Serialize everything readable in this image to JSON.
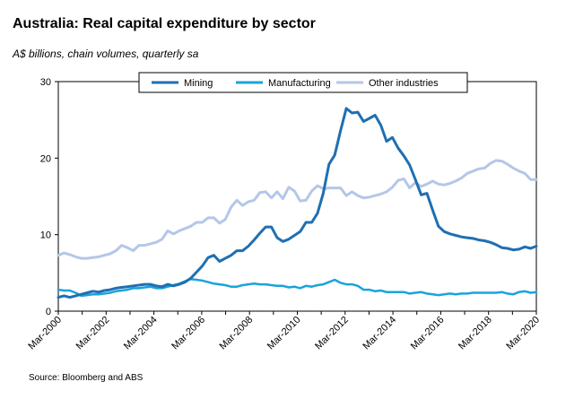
{
  "title": "Australia: Real capital expenditure by sector",
  "subtitle": "A$ billions, chain volumes, quarterly sa",
  "source": "Source: Bloomberg and ABS",
  "chart_data": {
    "type": "line",
    "title": "Australia: Real capital expenditure by sector",
    "ylabel": "A$ billions, chain volumes, quarterly sa",
    "xlabel": "",
    "ylim": [
      0,
      30
    ],
    "yticks": [
      0,
      10,
      20,
      30
    ],
    "xlim": [
      "Mar-2000",
      "Mar-2020"
    ],
    "xtick_labels": [
      "Mar-2000",
      "Mar-2002",
      "Mar-2004",
      "Mar-2006",
      "Mar-2008",
      "Mar-2010",
      "Mar-2012",
      "Mar-2014",
      "Mar-2016",
      "Mar-2018",
      "Mar-2020"
    ],
    "x_start_year": 2000,
    "x_end_year": 2020,
    "legend": {
      "position": "top",
      "entries": [
        "Mining",
        "Manufacturing",
        "Other industries"
      ]
    },
    "series": [
      {
        "name": "Mining",
        "color": "#1f6fb2",
        "values": [
          1.8,
          2.0,
          1.8,
          2.0,
          2.2,
          2.4,
          2.6,
          2.5,
          2.7,
          2.8,
          3.0,
          3.1,
          3.2,
          3.3,
          3.4,
          3.5,
          3.5,
          3.3,
          3.2,
          3.5,
          3.3,
          3.5,
          3.8,
          4.3,
          5.1,
          5.9,
          7.0,
          7.3,
          6.5,
          6.9,
          7.3,
          7.9,
          7.9,
          8.5,
          9.3,
          10.2,
          11.0,
          11.0,
          9.6,
          9.1,
          9.4,
          9.9,
          10.4,
          11.6,
          11.6,
          12.8,
          15.4,
          19.2,
          20.4,
          23.6,
          26.5,
          25.9,
          26.0,
          24.8,
          25.2,
          25.6,
          24.3,
          22.2,
          22.7,
          21.3,
          20.3,
          19.1,
          17.2,
          15.2,
          15.4,
          13.2,
          11.1,
          10.4,
          10.1,
          9.9,
          9.7,
          9.6,
          9.5,
          9.3,
          9.2,
          9.0,
          8.7,
          8.3,
          8.2,
          8.0,
          8.1,
          8.4,
          8.2,
          8.5
        ]
      },
      {
        "name": "Manufacturing",
        "color": "#1aa3dc",
        "values": [
          2.8,
          2.7,
          2.7,
          2.4,
          2.0,
          2.1,
          2.2,
          2.2,
          2.3,
          2.4,
          2.6,
          2.7,
          2.8,
          3.0,
          3.0,
          3.1,
          3.2,
          3.0,
          3.0,
          3.2,
          3.4,
          3.6,
          3.9,
          4.2,
          4.1,
          4.0,
          3.8,
          3.6,
          3.5,
          3.4,
          3.2,
          3.2,
          3.4,
          3.5,
          3.6,
          3.5,
          3.5,
          3.4,
          3.3,
          3.3,
          3.1,
          3.2,
          3.0,
          3.3,
          3.2,
          3.4,
          3.5,
          3.8,
          4.1,
          3.7,
          3.5,
          3.5,
          3.3,
          2.8,
          2.8,
          2.6,
          2.7,
          2.5,
          2.5,
          2.5,
          2.5,
          2.3,
          2.4,
          2.5,
          2.3,
          2.2,
          2.1,
          2.2,
          2.3,
          2.2,
          2.3,
          2.3,
          2.4,
          2.4,
          2.4,
          2.4,
          2.4,
          2.5,
          2.3,
          2.2,
          2.5,
          2.6,
          2.4,
          2.5
        ]
      },
      {
        "name": "Other industries",
        "color": "#b4c7e7",
        "values": [
          7.3,
          7.6,
          7.4,
          7.1,
          6.9,
          6.9,
          7.0,
          7.1,
          7.3,
          7.5,
          7.9,
          8.6,
          8.3,
          7.9,
          8.6,
          8.6,
          8.8,
          9.0,
          9.4,
          10.5,
          10.1,
          10.5,
          10.8,
          11.1,
          11.6,
          11.6,
          12.2,
          12.2,
          11.5,
          12.0,
          13.6,
          14.5,
          13.8,
          14.3,
          14.5,
          15.5,
          15.6,
          14.8,
          15.6,
          14.7,
          16.2,
          15.7,
          14.4,
          14.5,
          15.7,
          16.4,
          16.0,
          16.1,
          16.1,
          16.1,
          15.1,
          15.6,
          15.1,
          14.8,
          14.9,
          15.1,
          15.3,
          15.6,
          16.2,
          17.1,
          17.3,
          16.1,
          16.8,
          16.3,
          16.6,
          17.0,
          16.6,
          16.5,
          16.7,
          17.0,
          17.4,
          18.0,
          18.3,
          18.6,
          18.7,
          19.3,
          19.7,
          19.6,
          19.2,
          18.7,
          18.3,
          18.0,
          17.2,
          17.2
        ]
      }
    ]
  }
}
